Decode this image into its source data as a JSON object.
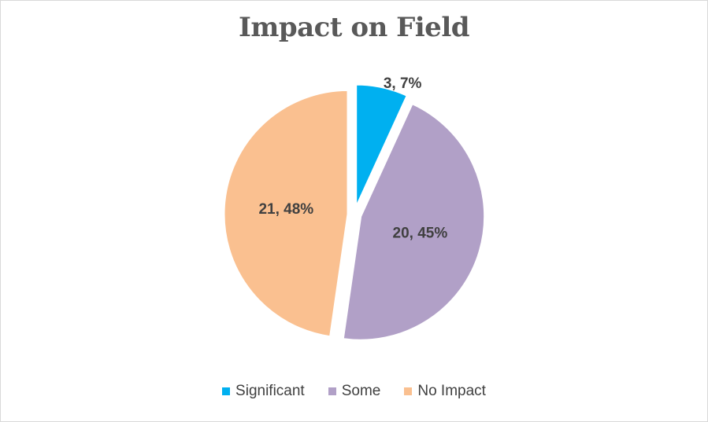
{
  "chart_data": {
    "type": "pie",
    "title": "Impact on Field",
    "categories": [
      "Significant",
      "Some",
      "No Impact"
    ],
    "values": [
      3,
      20,
      21
    ],
    "percentages": [
      "7%",
      "45%",
      "48%"
    ],
    "data_labels": [
      "3, 7%",
      "20, 45%",
      "21, 48%"
    ],
    "colors": [
      "#00b0f0",
      "#b1a0c7",
      "#fac090"
    ],
    "exploded": true,
    "legend_position": "bottom"
  }
}
